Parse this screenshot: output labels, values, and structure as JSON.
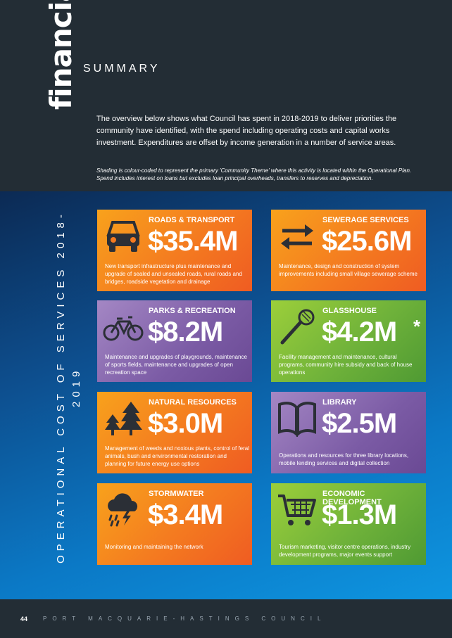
{
  "header": {
    "financial": "financial",
    "summary": "SUMMARY",
    "intro": "The overview below shows what Council has spent in 2018-2019 to deliver priorities the community have identified, with the spend including operating costs and capital works investment. Expenditures are offset by income generation in a number of service areas.",
    "note": "Shading is colour-coded to represent the primary 'Community Theme' where this activity is located within the Operational Plan. Spend includes interest on loans but excludes loan principal overheads, transfers to reserves and depreciation."
  },
  "side_title": "OPERATIONAL COST OF SERVICES 2018-2019",
  "tiles": [
    {
      "title": "ROADS & TRANSPORT",
      "amount": "$35.4M",
      "description": "New transport infrastructure plus maintenance and upgrade of sealed and unsealed roads, rural roads and bridges, roadside vegetation and drainage",
      "icon": "car-icon",
      "color": "#f47a20"
    },
    {
      "title": "SEWERAGE SERVICES",
      "amount": "$25.6M",
      "description": "Maintenance, design and construction of system improvements including small village sewerage scheme",
      "icon": "exchange-arrows-icon",
      "color": "#f47a20"
    },
    {
      "title": "PARKS & RECREATION",
      "amount": "$8.2M",
      "description": "Maintenance and upgrades of playgrounds, maintenance of sports fields, maintenance and upgrades of open recreation space",
      "icon": "bicycle-icon",
      "color": "#7b5ba5"
    },
    {
      "title": "GLASSHOUSE",
      "amount": "$4.2M",
      "asterisk": "*",
      "description": "Facility management and maintenance, cultural programs, community hire subsidy and back of house operations",
      "icon": "microphone-icon",
      "color": "#6fb23a"
    },
    {
      "title": "NATURAL RESOURCES",
      "amount": "$3.0M",
      "description": "Management of weeds and noxious plants, control of feral animals, bush and environmental restoration and planning for future energy use options",
      "icon": "trees-icon",
      "color": "#f47a20"
    },
    {
      "title": "LIBRARY",
      "amount": "$2.5M",
      "description": "Operations and resources for three library locations, mobile lending services and digital collection",
      "icon": "open-book-icon",
      "color": "#7b5ba5"
    },
    {
      "title": "STORMWATER",
      "amount": "$3.4M",
      "description": "Monitoring and maintaining the network",
      "icon": "storm-cloud-icon",
      "color": "#f47a20"
    },
    {
      "title": "ECONOMIC DEVELOPMENT",
      "amount": "$1.3M",
      "description": "Tourism marketing, visitor centre operations, industry development programs, major events support",
      "icon": "shopping-cart-icon",
      "color": "#6fb23a"
    }
  ],
  "footer": {
    "page_number": "44",
    "council": "PORT MACQUARIE-HASTINGS COUNCIL"
  }
}
